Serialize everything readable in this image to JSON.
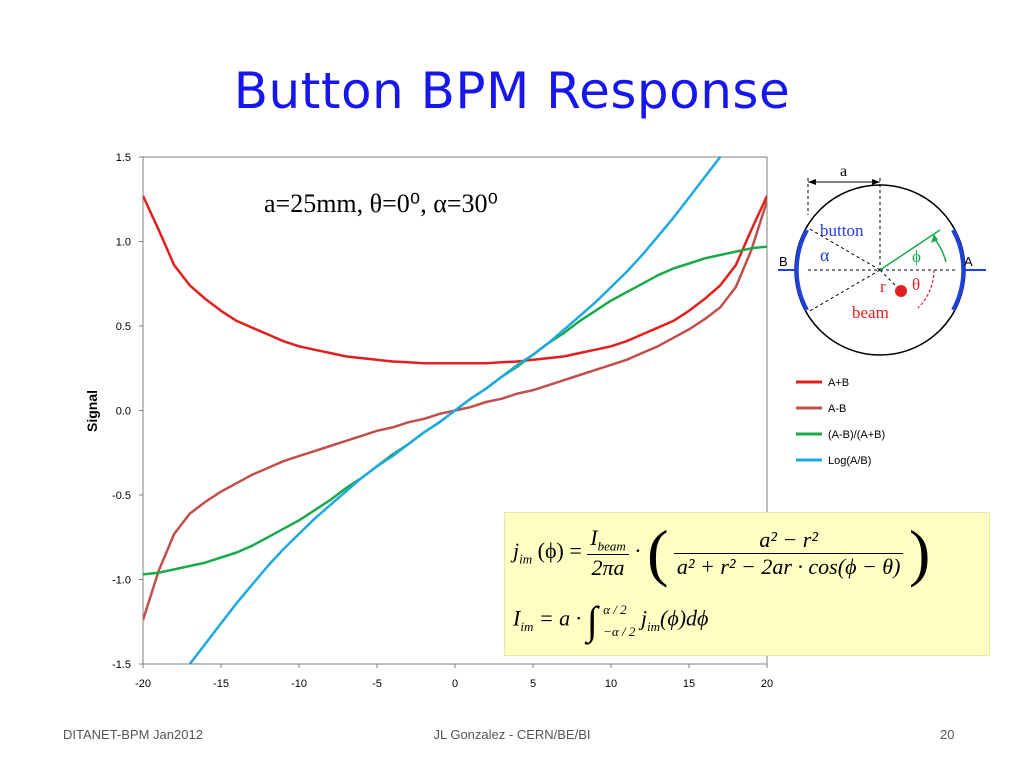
{
  "slide": {
    "title": "Button BPM Response",
    "footer_left": "DITANET-BPM Jan2012",
    "footer_center": "JL Gonzalez - CERN/BE/BI",
    "footer_right": "20"
  },
  "chart_data": {
    "type": "line",
    "ylabel": "Signal",
    "xlim": [
      -20,
      20
    ],
    "ylim": [
      -1.5,
      1.5
    ],
    "x_ticks": [
      "-20",
      "-15",
      "-10",
      "-5",
      "0",
      "5",
      "10",
      "15",
      "20"
    ],
    "y_ticks": [
      "1.5",
      "1.0",
      "0.5",
      "0.0",
      "-0.5",
      "-1.0",
      "-1.5"
    ],
    "annotation": "a=25mm, θ=0⁰, α=30⁰",
    "legend_position": "right",
    "series": [
      {
        "name": "A+B",
        "color": "#e0201c",
        "x": [
          -20,
          -19,
          -18,
          -17,
          -16,
          -15,
          -14,
          -13,
          -12,
          -11,
          -10,
          -9,
          -8,
          -7,
          -6,
          -5,
          -4,
          -3,
          -2,
          -1,
          0,
          1,
          2,
          3,
          4,
          5,
          6,
          7,
          8,
          9,
          10,
          11,
          12,
          13,
          14,
          15,
          16,
          17,
          18,
          19,
          20
        ],
        "y": [
          1.27,
          1.07,
          0.86,
          0.74,
          0.66,
          0.59,
          0.53,
          0.49,
          0.45,
          0.41,
          0.38,
          0.36,
          0.34,
          0.32,
          0.31,
          0.3,
          0.29,
          0.285,
          0.28,
          0.28,
          0.28,
          0.28,
          0.28,
          0.285,
          0.29,
          0.3,
          0.31,
          0.32,
          0.34,
          0.36,
          0.38,
          0.41,
          0.45,
          0.49,
          0.53,
          0.59,
          0.66,
          0.74,
          0.86,
          1.07,
          1.27
        ]
      },
      {
        "name": "A-B",
        "color": "#c0504d",
        "x": [
          -20,
          -19,
          -18,
          -17,
          -16,
          -15,
          -14,
          -13,
          -12,
          -11,
          -10,
          -9,
          -8,
          -7,
          -6,
          -5,
          -4,
          -3,
          -2,
          -1,
          0,
          1,
          2,
          3,
          4,
          5,
          6,
          7,
          8,
          9,
          10,
          11,
          12,
          13,
          14,
          15,
          16,
          17,
          18,
          19,
          20
        ],
        "y": [
          -1.24,
          -0.95,
          -0.73,
          -0.61,
          -0.54,
          -0.48,
          -0.43,
          -0.38,
          -0.34,
          -0.3,
          -0.27,
          -0.24,
          -0.21,
          -0.18,
          -0.15,
          -0.12,
          -0.1,
          -0.07,
          -0.05,
          -0.02,
          0.0,
          0.02,
          0.05,
          0.07,
          0.1,
          0.12,
          0.15,
          0.18,
          0.21,
          0.24,
          0.27,
          0.3,
          0.34,
          0.38,
          0.43,
          0.48,
          0.54,
          0.61,
          0.73,
          0.95,
          1.24
        ]
      },
      {
        "name": "(A-B)/(A+B)",
        "color": "#1aaa4a",
        "x": [
          -20,
          -19,
          -18,
          -17,
          -16,
          -15,
          -14,
          -13,
          -12,
          -11,
          -10,
          -9,
          -8,
          -7,
          -6,
          -5,
          -4,
          -3,
          -2,
          -1,
          0,
          1,
          2,
          3,
          4,
          5,
          6,
          7,
          8,
          9,
          10,
          11,
          12,
          13,
          14,
          15,
          16,
          17,
          18,
          19,
          20
        ],
        "y": [
          -0.97,
          -0.96,
          -0.94,
          -0.92,
          -0.9,
          -0.87,
          -0.84,
          -0.8,
          -0.75,
          -0.7,
          -0.65,
          -0.59,
          -0.53,
          -0.46,
          -0.4,
          -0.33,
          -0.26,
          -0.2,
          -0.13,
          -0.07,
          0.0,
          0.07,
          0.13,
          0.2,
          0.26,
          0.33,
          0.4,
          0.46,
          0.53,
          0.59,
          0.65,
          0.7,
          0.75,
          0.8,
          0.84,
          0.87,
          0.9,
          0.92,
          0.94,
          0.96,
          0.97
        ]
      },
      {
        "name": "Log(A/B)",
        "color": "#1fa9e1",
        "x": [
          -17,
          -16,
          -15,
          -14,
          -13,
          -12,
          -11,
          -10,
          -9,
          -8,
          -7,
          -6,
          -5,
          -4,
          -3,
          -2,
          -1,
          0,
          1,
          2,
          3,
          4,
          5,
          6,
          7,
          8,
          9,
          10,
          11,
          12,
          13,
          14,
          15,
          16,
          17
        ],
        "y": [
          -1.5,
          -1.38,
          -1.26,
          -1.14,
          -1.03,
          -0.92,
          -0.82,
          -0.73,
          -0.64,
          -0.56,
          -0.48,
          -0.4,
          -0.33,
          -0.27,
          -0.2,
          -0.13,
          -0.07,
          0.0,
          0.07,
          0.13,
          0.2,
          0.27,
          0.33,
          0.4,
          0.48,
          0.56,
          0.64,
          0.73,
          0.82,
          0.92,
          1.03,
          1.14,
          1.26,
          1.38,
          1.5
        ]
      }
    ]
  },
  "diagram": {
    "label_a": "a",
    "label_button": "button",
    "label_alpha": "α",
    "label_phi": "ϕ",
    "label_B": "B",
    "label_A": "A",
    "label_r": "r",
    "label_theta": "θ",
    "label_beam": "beam",
    "colors": {
      "button_arc": "#2040e0",
      "phi_arrow": "#1aaa4a",
      "beam_dot": "#e02020",
      "beam_text": "#e02020",
      "blue_text": "#2040e0"
    }
  },
  "formula": {
    "line1": {
      "j": "j",
      "im": "im",
      "phi_arg": "(ϕ) =",
      "I_num": "I",
      "beam": "beam",
      "den_left": "2πa",
      "dot": "·",
      "num2": "a² − r²",
      "den2": "a² + r² − 2ar · cos(ϕ − θ)"
    },
    "line2": {
      "I": "I",
      "im": "im",
      "eq": "= a ·",
      "upper": "α / 2",
      "lower": "−α / 2",
      "integrand": "j",
      "im2": "im",
      "rest": "(ϕ)dϕ"
    }
  }
}
